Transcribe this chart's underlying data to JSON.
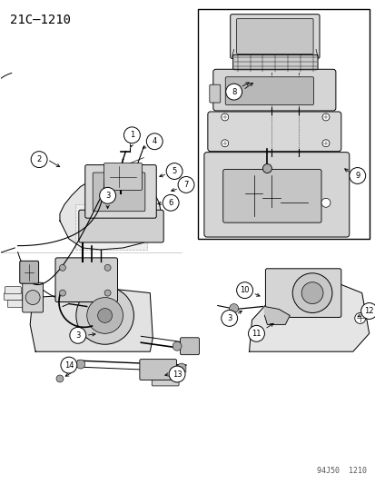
{
  "title": "21C‒1210",
  "watermark": "94J50  1210",
  "bg_color": "#ffffff",
  "lc": "#000000",
  "title_fontsize": 10,
  "watermark_fontsize": 6,
  "fig_width": 4.14,
  "fig_height": 5.33,
  "dpi": 100
}
